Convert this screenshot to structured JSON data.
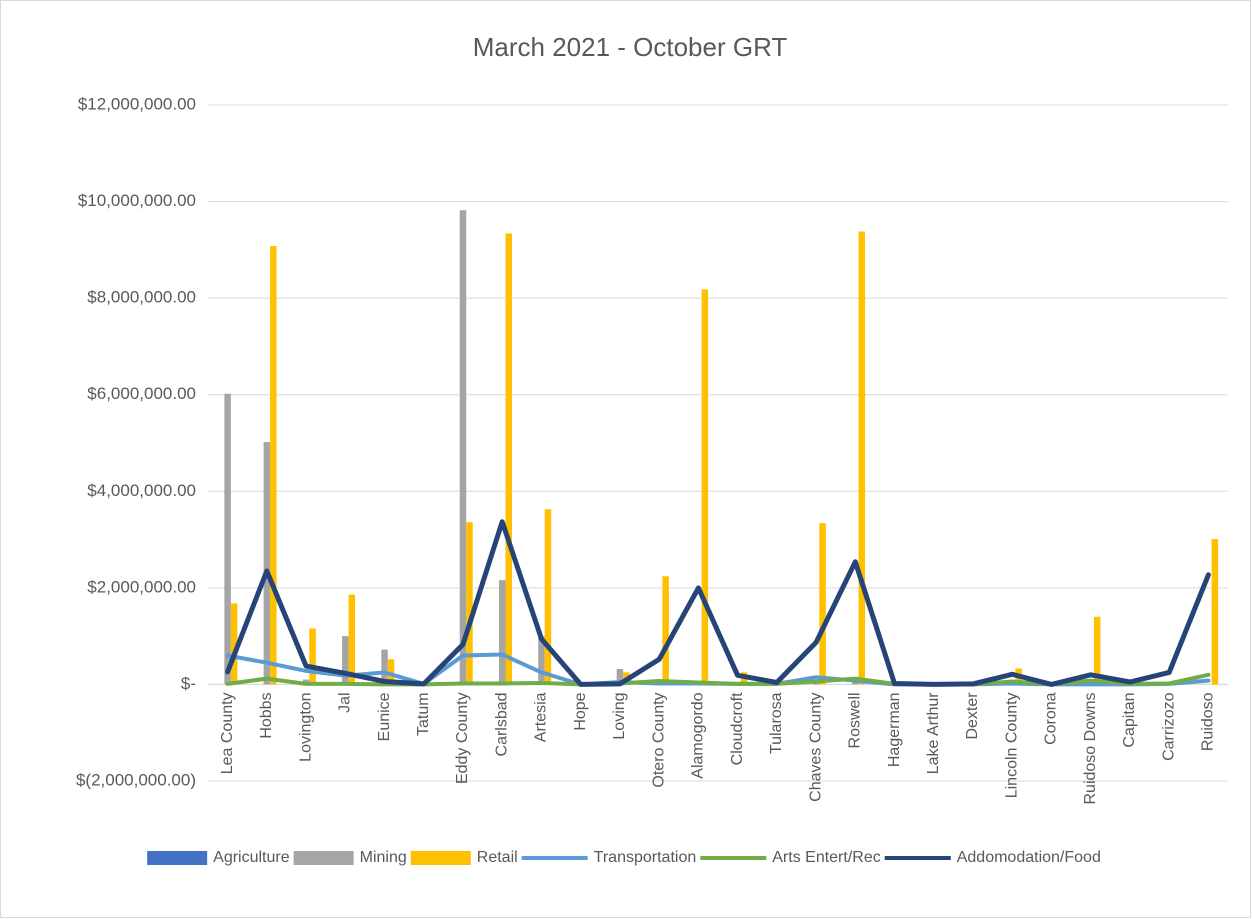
{
  "chart_data": {
    "type": "combo",
    "title": "March 2021 - October GRT",
    "categories": [
      "Lea County",
      "Hobbs",
      "Lovington",
      "Jal",
      "Eunice",
      "Tatum",
      "Eddy County",
      "Carlsbad",
      "Artesia",
      "Hope",
      "Loving",
      "Otero County",
      "Alamogordo",
      "Cloudcroft",
      "Tularosa",
      "Chaves County",
      "Roswell",
      "Hagerman",
      "Lake Arthur",
      "Dexter",
      "Lincoln County",
      "Corona",
      "Ruidoso Downs",
      "Capitan",
      "Carrizozo",
      "Ruidoso"
    ],
    "series": [
      {
        "name": "Agriculture",
        "type": "bar",
        "color": "#4472c4",
        "values": [
          0,
          0,
          0,
          0,
          0,
          0,
          0,
          0,
          0,
          0,
          0,
          0,
          0,
          0,
          0,
          0,
          0,
          0,
          0,
          0,
          0,
          0,
          0,
          0,
          0,
          0
        ]
      },
      {
        "name": "Mining",
        "type": "bar",
        "color": "#a5a5a5",
        "values": [
          6020000,
          5020000,
          100000,
          1000000,
          720000,
          20000,
          9820000,
          2160000,
          1000000,
          0,
          320000,
          0,
          0,
          0,
          0,
          100000,
          100000,
          0,
          0,
          0,
          0,
          0,
          0,
          0,
          0,
          0
        ]
      },
      {
        "name": "Retail",
        "type": "bar",
        "color": "#ffc000",
        "values": [
          1680000,
          9080000,
          1160000,
          1860000,
          520000,
          20000,
          3360000,
          9340000,
          3630000,
          10000,
          250000,
          2240000,
          8180000,
          250000,
          80000,
          3340000,
          9380000,
          20000,
          5000,
          30000,
          330000,
          10000,
          1400000,
          60000,
          80000,
          3010000
        ]
      },
      {
        "name": "Transportation",
        "type": "line",
        "color": "#5b9bd5",
        "values": [
          600000,
          450000,
          280000,
          180000,
          250000,
          10000,
          600000,
          620000,
          250000,
          0,
          50000,
          20000,
          20000,
          10000,
          10000,
          150000,
          80000,
          0,
          0,
          0,
          20000,
          0,
          0,
          0,
          10000,
          80000
        ]
      },
      {
        "name": "Arts Entert/Rec",
        "type": "line",
        "color": "#70ad47",
        "values": [
          10000,
          120000,
          10000,
          10000,
          0,
          0,
          20000,
          20000,
          30000,
          0,
          20000,
          70000,
          40000,
          10000,
          10000,
          60000,
          120000,
          10000,
          0,
          0,
          60000,
          0,
          80000,
          10000,
          20000,
          200000
        ]
      },
      {
        "name": "Addomodation/Food",
        "type": "line",
        "color": "#264478",
        "values": [
          260000,
          2350000,
          380000,
          230000,
          60000,
          10000,
          830000,
          3370000,
          940000,
          0,
          10000,
          520000,
          2000000,
          190000,
          40000,
          870000,
          2540000,
          20000,
          0,
          10000,
          210000,
          0,
          200000,
          50000,
          250000,
          2270000
        ]
      }
    ],
    "ylim": [
      -2000000,
      12000000
    ],
    "yticks": [
      {
        "value": -2000000,
        "label": "$(2,000,000.00)"
      },
      {
        "value": 0,
        "label": "$-"
      },
      {
        "value": 2000000,
        "label": "$2,000,000.00"
      },
      {
        "value": 4000000,
        "label": "$4,000,000.00"
      },
      {
        "value": 6000000,
        "label": "$6,000,000.00"
      },
      {
        "value": 8000000,
        "label": "$8,000,000.00"
      },
      {
        "value": 10000000,
        "label": "$10,000,000.00"
      },
      {
        "value": 12000000,
        "label": "$12,000,000.00"
      }
    ],
    "grid": true,
    "legend": "bottom"
  }
}
